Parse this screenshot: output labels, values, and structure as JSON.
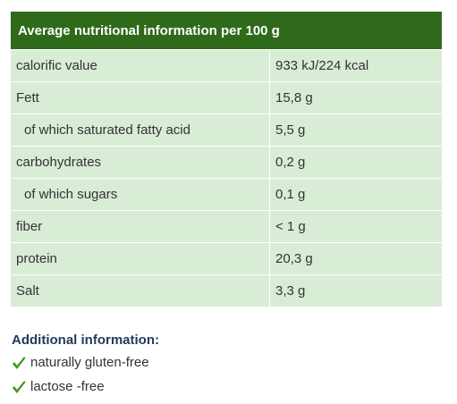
{
  "header": {
    "title": "Average nutritional information per 100 g"
  },
  "table": {
    "rows": [
      [
        "calorific value",
        "933 kJ/224 kcal"
      ],
      [
        "Fett",
        "15,8 g"
      ],
      [
        "of which saturated fatty acid",
        "5,5 g"
      ],
      [
        "carbohydrates",
        "0,2 g"
      ],
      [
        "of which sugars",
        "0,1 g"
      ],
      [
        "fiber",
        "< 1 g"
      ],
      [
        "protein",
        "20,3 g"
      ],
      [
        "Salt",
        "3,3 g"
      ]
    ]
  },
  "additional": {
    "title": "Additional information:",
    "items": [
      "naturally gluten-free",
      "lactose -free"
    ]
  }
}
